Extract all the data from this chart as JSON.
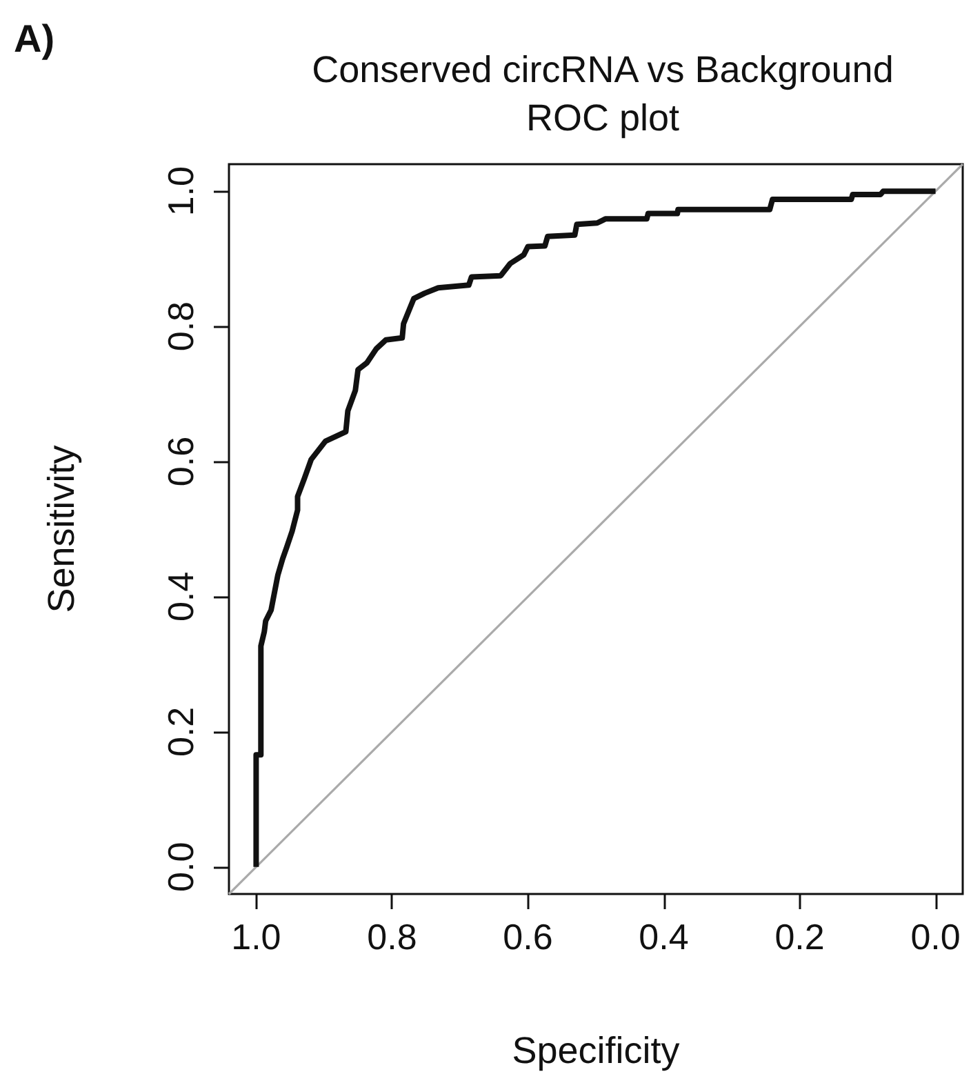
{
  "chart_data": {
    "type": "line",
    "title": "Conserved circRNA vs Background\nROC plot",
    "xlabel": "Specificity",
    "ylabel": "Sensitivity",
    "annotations": [
      "A)"
    ],
    "xlim": [
      1.04,
      -0.04
    ],
    "xticks": [
      {
        "value": 1,
        "label": "1.0"
      },
      0.8,
      0.6,
      0.4,
      0.2,
      {
        "value": 0,
        "label": "0.0"
      }
    ],
    "ylim": [
      -0.04,
      1.04
    ],
    "yticks": [
      {
        "value": 0,
        "label": "0.0"
      },
      0.2,
      0.4,
      0.6,
      0.8,
      {
        "value": 1,
        "label": "1.0"
      }
    ],
    "grid": false,
    "marker": "none",
    "line_style": "solid",
    "series": [
      {
        "color": "#111111",
        "x": [
          1.0,
          1.0,
          0.993,
          0.993,
          0.988,
          0.986,
          0.978,
          0.968,
          0.961,
          0.955,
          0.947,
          0.939,
          0.939,
          0.929,
          0.919,
          0.898,
          0.868,
          0.865,
          0.854,
          0.85,
          0.837,
          0.823,
          0.809,
          0.785,
          0.783,
          0.768,
          0.752,
          0.732,
          0.687,
          0.683,
          0.64,
          0.626,
          0.606,
          0.6,
          0.575,
          0.571,
          0.531,
          0.528,
          0.498,
          0.49,
          0.486,
          0.425,
          0.423,
          0.38,
          0.379,
          0.244,
          0.24,
          0.124,
          0.122,
          0.081,
          0.077,
          0.0
        ],
        "values": [
          0.0,
          0.166,
          0.166,
          0.327,
          0.348,
          0.364,
          0.38,
          0.432,
          0.456,
          0.473,
          0.497,
          0.528,
          0.548,
          0.575,
          0.603,
          0.63,
          0.644,
          0.675,
          0.705,
          0.736,
          0.746,
          0.767,
          0.78,
          0.783,
          0.804,
          0.841,
          0.849,
          0.857,
          0.861,
          0.873,
          0.875,
          0.893,
          0.906,
          0.918,
          0.919,
          0.933,
          0.935,
          0.951,
          0.953,
          0.957,
          0.959,
          0.959,
          0.967,
          0.967,
          0.973,
          0.973,
          0.988,
          0.988,
          0.995,
          0.995,
          1.0,
          1.0
        ]
      },
      {
        "color": "#aaaaaa",
        "x": [
          1.04,
          -0.04
        ],
        "values": [
          -0.04,
          1.04
        ]
      }
    ]
  }
}
